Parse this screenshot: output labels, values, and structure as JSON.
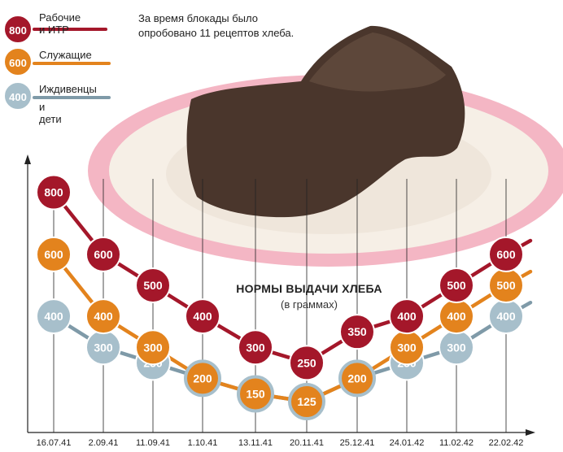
{
  "legend": [
    {
      "badge": "800",
      "label_1": "Рабочие и ИТР",
      "label_2": "",
      "color": "#a4172a"
    },
    {
      "badge": "600",
      "label_1": "Служащие",
      "label_2": "",
      "color": "#e3831d"
    },
    {
      "badge": "400",
      "label_1": "Иждивенцы",
      "label_2": "и дети",
      "color": "#a7bfcb"
    }
  ],
  "note": {
    "line_1": "За время блокады было",
    "line_2": "опробовано 11 рецептов хлеба."
  },
  "colors": {
    "plate_rim": "#f4b6c4",
    "plate": "#f6efe6",
    "bread": "#4a362c",
    "axis": "#222222"
  },
  "chart_data": {
    "type": "line",
    "title": "НОРМЫ ВЫДАЧИ ХЛЕБА",
    "subtitle": "(в граммах)",
    "xlabel": "",
    "ylabel": "",
    "categories": [
      "16.07.41",
      "2.09.41",
      "11.09.41",
      "1.10.41",
      "13.11.41",
      "20.11.41",
      "25.12.41",
      "24.01.42",
      "11.02.42",
      "22.02.42"
    ],
    "series": [
      {
        "name": "Рабочие и ИТР",
        "color": "#a4172a",
        "values": [
          800,
          600,
          500,
          400,
          300,
          250,
          350,
          400,
          500,
          600
        ],
        "labels": [
          "800",
          "600",
          "500",
          "400",
          "300",
          "250",
          "350",
          "400",
          "500",
          "600"
        ]
      },
      {
        "name": "Служащие",
        "color": "#e3831d",
        "values": [
          600,
          400,
          300,
          200,
          150,
          125,
          200,
          300,
          400,
          500
        ],
        "labels": [
          "600",
          "400",
          "300",
          "200",
          "150",
          "125",
          "200",
          "300",
          "400",
          "500"
        ]
      },
      {
        "name": "Иждивенцы и дети",
        "color": "#a7bfcb",
        "values": [
          400,
          300,
          250,
          200,
          150,
          125,
          200,
          250,
          300,
          400
        ],
        "labels": [
          "400",
          "300",
          "250",
          "",
          "",
          "",
          "",
          "250",
          "300",
          "400"
        ]
      }
    ],
    "grid": "vertical",
    "legend_position": "top-left"
  }
}
